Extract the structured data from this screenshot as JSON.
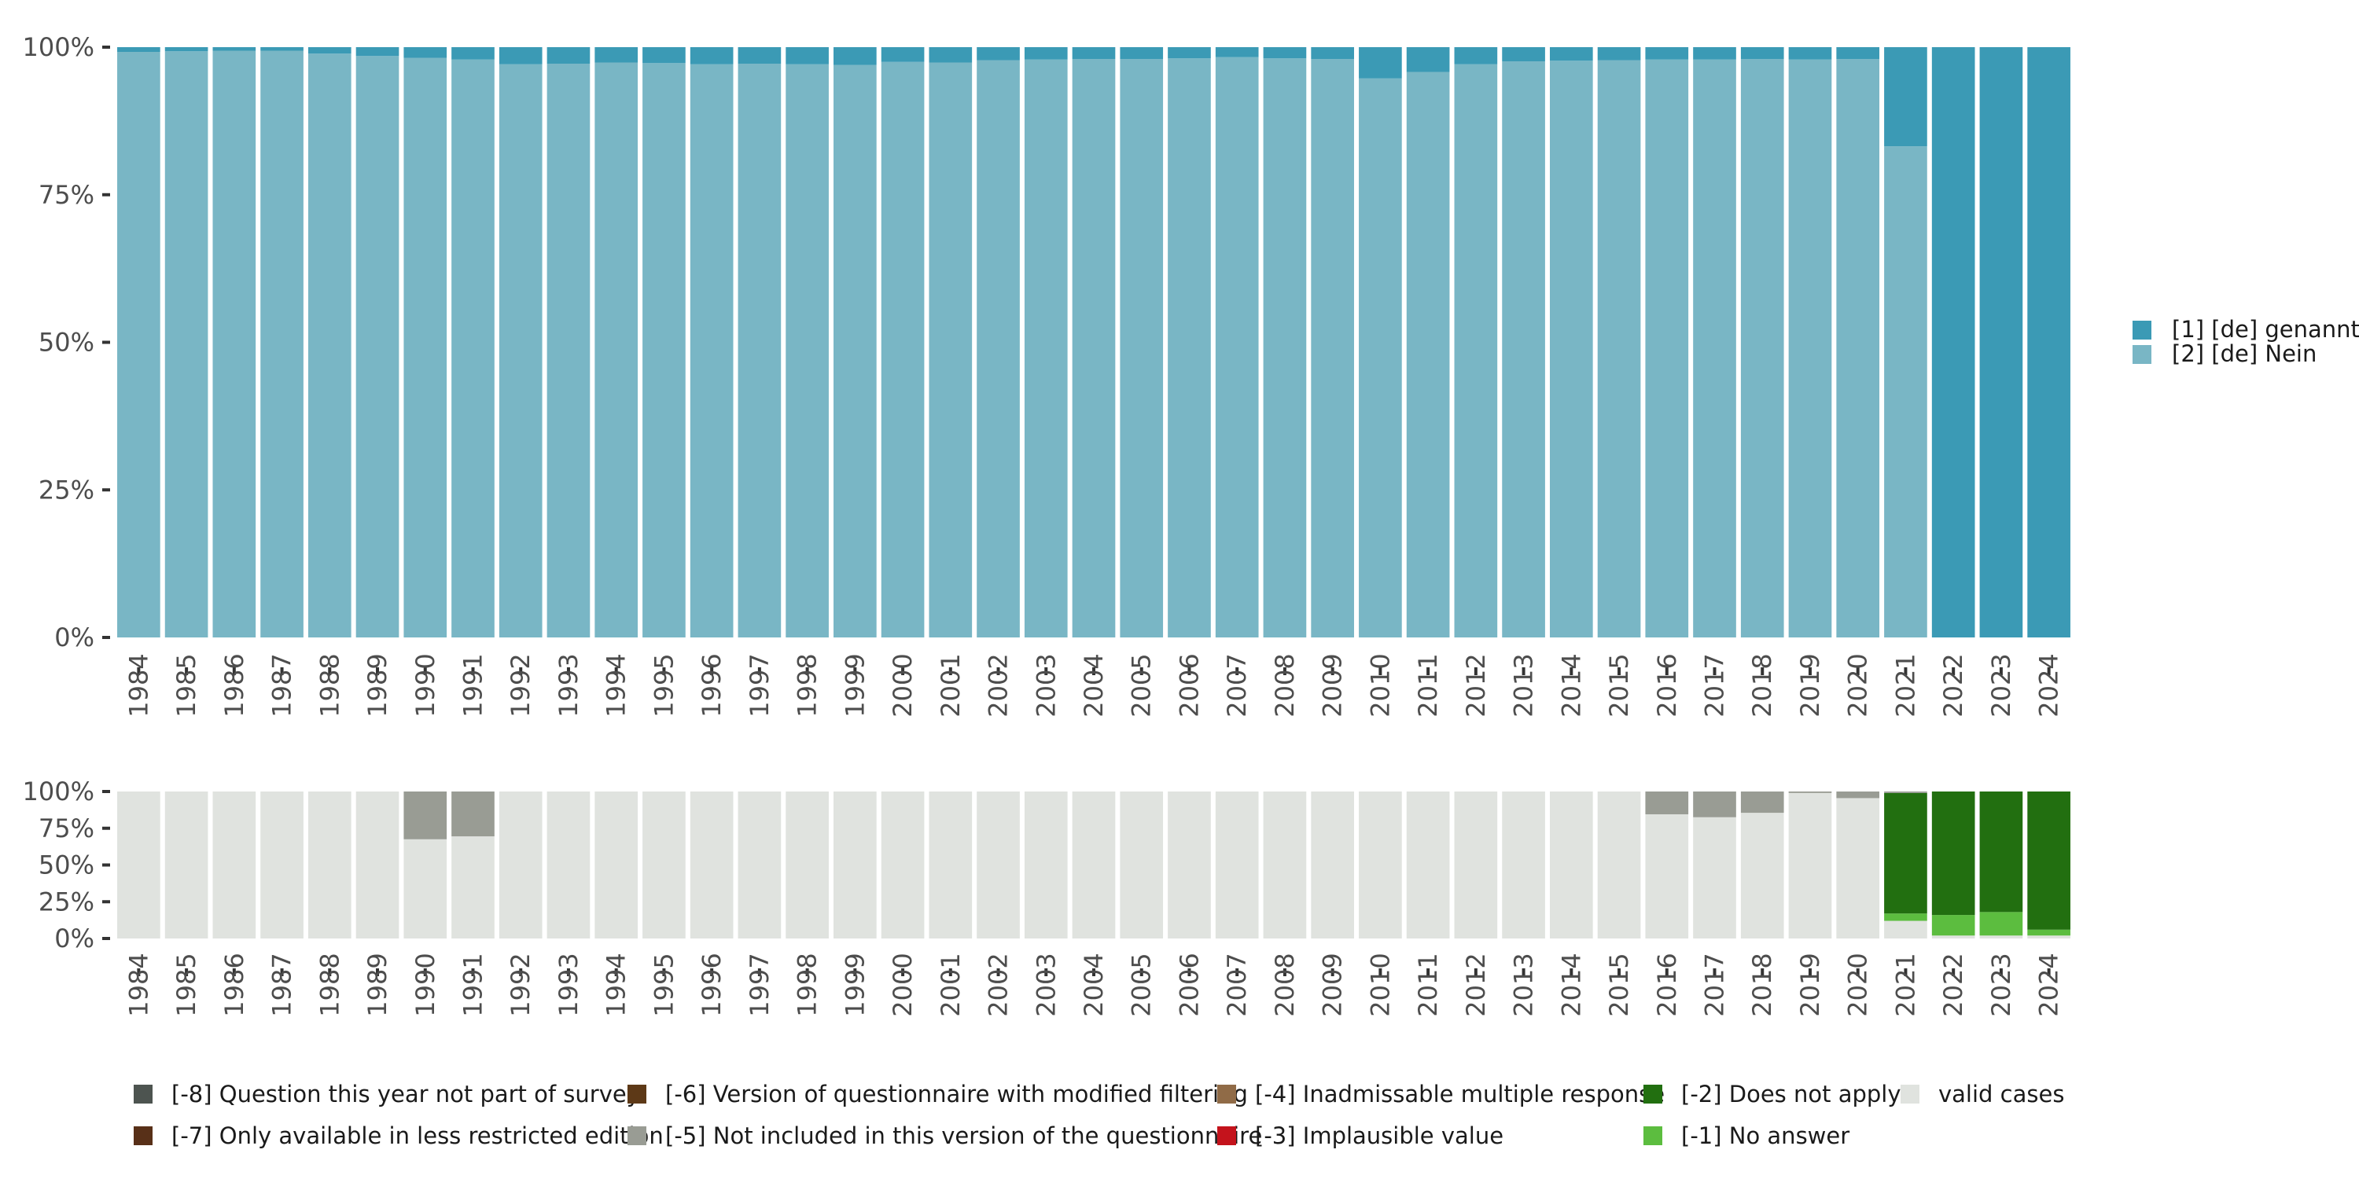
{
  "chart_data": [
    {
      "type": "bar",
      "stacked": true,
      "title": "",
      "xlabel": "",
      "ylabel": "",
      "ylim": [
        0,
        100
      ],
      "y_ticks": [
        "0%",
        "25%",
        "50%",
        "75%",
        "100%"
      ],
      "categories": [
        "1984",
        "1985",
        "1986",
        "1987",
        "1988",
        "1989",
        "1990",
        "1991",
        "1992",
        "1993",
        "1994",
        "1995",
        "1996",
        "1997",
        "1998",
        "1999",
        "2000",
        "2001",
        "2002",
        "2003",
        "2004",
        "2005",
        "2006",
        "2007",
        "2008",
        "2009",
        "2010",
        "2011",
        "2012",
        "2013",
        "2014",
        "2015",
        "2016",
        "2017",
        "2018",
        "2019",
        "2020",
        "2021",
        "2022",
        "2023",
        "2024"
      ],
      "series": [
        {
          "name": "[2] [de] Nein",
          "color": "#79b6c5",
          "values": [
            99.2,
            99.3,
            99.4,
            99.4,
            98.9,
            98.5,
            98.2,
            97.9,
            97.1,
            97.2,
            97.4,
            97.3,
            97.1,
            97.2,
            97.1,
            97.0,
            97.5,
            97.4,
            97.8,
            97.9,
            98.0,
            98.0,
            98.1,
            98.3,
            98.1,
            98.0,
            94.7,
            95.8,
            97.1,
            97.6,
            97.7,
            97.8,
            97.9,
            97.9,
            98.0,
            97.9,
            98.0,
            83.2,
            0,
            0,
            0
          ]
        },
        {
          "name": "[1] [de] genannt",
          "color": "#3b9ab5",
          "values": [
            0.8,
            0.7,
            0.6,
            0.6,
            1.1,
            1.5,
            1.8,
            2.1,
            2.9,
            2.8,
            2.6,
            2.7,
            2.9,
            2.8,
            2.9,
            3.0,
            2.5,
            2.6,
            2.2,
            2.1,
            2.0,
            2.0,
            1.9,
            1.7,
            1.9,
            2.0,
            5.3,
            4.2,
            2.9,
            2.4,
            2.3,
            2.2,
            2.1,
            2.1,
            2.0,
            2.1,
            2.0,
            16.8,
            100,
            100,
            100
          ]
        }
      ],
      "legend": {
        "position": "right",
        "entries": [
          "[1] [de] genannt",
          "[2] [de] Nein"
        ]
      }
    },
    {
      "type": "bar",
      "stacked": true,
      "title": "",
      "xlabel": "",
      "ylabel": "",
      "ylim": [
        0,
        100
      ],
      "y_ticks": [
        "0%",
        "25%",
        "50%",
        "75%",
        "100%"
      ],
      "categories": [
        "1984",
        "1985",
        "1986",
        "1987",
        "1988",
        "1989",
        "1990",
        "1991",
        "1992",
        "1993",
        "1994",
        "1995",
        "1996",
        "1997",
        "1998",
        "1999",
        "2000",
        "2001",
        "2002",
        "2003",
        "2004",
        "2005",
        "2006",
        "2007",
        "2008",
        "2009",
        "2010",
        "2011",
        "2012",
        "2013",
        "2014",
        "2015",
        "2016",
        "2017",
        "2018",
        "2019",
        "2020",
        "2021",
        "2022",
        "2023",
        "2024"
      ],
      "series": [
        {
          "name": "valid cases",
          "color": "#e0e3df",
          "values": [
            100,
            100,
            100,
            100,
            100,
            100,
            67.5,
            69.5,
            100,
            100,
            100,
            100,
            100,
            100,
            100,
            100,
            100,
            100,
            100,
            100,
            100,
            100,
            100,
            100,
            100,
            100,
            100,
            100,
            100,
            100,
            100,
            100,
            84.5,
            82.5,
            85.5,
            99.0,
            95.5,
            12.0,
            2.0,
            2.0,
            2.0
          ]
        },
        {
          "name": "[-1] No answer",
          "color": "#5cbd3f",
          "values": [
            0,
            0,
            0,
            0,
            0,
            0,
            0,
            0,
            0,
            0,
            0,
            0,
            0,
            0,
            0,
            0,
            0,
            0,
            0,
            0,
            0,
            0,
            0,
            0,
            0,
            0,
            0,
            0,
            0,
            0,
            0,
            0,
            0,
            0,
            0,
            0,
            0,
            5.0,
            14.0,
            16.0,
            4.0
          ]
        },
        {
          "name": "[-2] Does not apply",
          "color": "#226f10",
          "values": [
            0,
            0,
            0,
            0,
            0,
            0,
            0,
            0,
            0,
            0,
            0,
            0,
            0,
            0,
            0,
            0,
            0,
            0,
            0,
            0,
            0,
            0,
            0,
            0,
            0,
            0,
            0,
            0,
            0,
            0,
            0,
            0,
            0,
            0,
            0,
            0,
            0,
            82.0,
            84.0,
            82.0,
            94.0
          ]
        },
        {
          "name": "[-5] Not included in this version of the questionnaire",
          "color": "#999c94",
          "values": [
            0,
            0,
            0,
            0,
            0,
            0,
            32.5,
            30.5,
            0,
            0,
            0,
            0,
            0,
            0,
            0,
            0,
            0,
            0,
            0,
            0,
            0,
            0,
            0,
            0,
            0,
            0,
            0,
            0,
            0,
            0,
            0,
            0,
            15.5,
            17.5,
            14.5,
            1.0,
            4.5,
            1.0,
            0,
            0,
            0
          ]
        }
      ],
      "legend": {
        "position": "bottom",
        "entries": [
          {
            "label": "[-8] Question this year not part of survey",
            "color": "#4d5450"
          },
          {
            "label": "[-7] Only available in less restricted edition",
            "color": "#583018"
          },
          {
            "label": "[-6] Version of questionnaire with modified filtering",
            "color": "#5d3917"
          },
          {
            "label": "[-5] Not included in this version of the questionnaire",
            "color": "#999c94"
          },
          {
            "label": "[-4] Inadmissable multiple response",
            "color": "#906b47"
          },
          {
            "label": "[-3] Implausible value",
            "color": "#c4131c"
          },
          {
            "label": "[-2] Does not apply",
            "color": "#226f10"
          },
          {
            "label": "[-1] No answer",
            "color": "#5cbd3f"
          },
          {
            "label": "valid cases",
            "color": "#e0e3df"
          }
        ]
      }
    }
  ]
}
